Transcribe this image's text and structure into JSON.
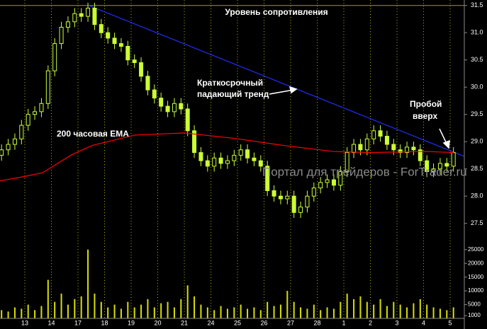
{
  "chart_data": {
    "type": "candlestick",
    "annotations": [
      "Уровень сопротивления",
      "Краткосрочный",
      "падающий тренд",
      "200 часовая EMA",
      "Пробой",
      "вверх"
    ],
    "watermark": "Портал для трейдеров - ForTrader.ru",
    "color": "#ccff33",
    "x": [
      0.125,
      0.375,
      0.625,
      0.875,
      1.125,
      1.375,
      1.625,
      1.875,
      2.125,
      2.375,
      2.625,
      2.875,
      3.125,
      3.375,
      3.625,
      3.875,
      4.125,
      4.375,
      4.625,
      4.875,
      5.125,
      5.375,
      5.625,
      5.875,
      6.125,
      6.375,
      6.625,
      6.875,
      7.125,
      7.375,
      7.625,
      7.875,
      8.125,
      8.375,
      8.625,
      8.875,
      9.125,
      9.375,
      9.625,
      9.875,
      10.125,
      10.375,
      10.625,
      10.875,
      11.125,
      11.375,
      11.625,
      11.875,
      12.125,
      12.375,
      12.625,
      12.875,
      13.125,
      13.375,
      13.625,
      13.875,
      14.125,
      14.375,
      14.625,
      14.875,
      15.125,
      15.375,
      15.625,
      15.875,
      16.125,
      16.375,
      16.625,
      16.875,
      17.125
    ],
    "open": [
      28.75,
      28.85,
      28.95,
      29.05,
      29.3,
      29.5,
      29.55,
      29.7,
      30.3,
      30.8,
      31.1,
      31.2,
      31.35,
      31.3,
      31.45,
      31.15,
      31.0,
      30.9,
      30.8,
      30.75,
      30.5,
      30.45,
      30.2,
      29.95,
      29.8,
      29.65,
      29.55,
      29.7,
      29.6,
      29.2,
      28.8,
      28.65,
      28.55,
      28.7,
      28.6,
      28.65,
      28.75,
      28.85,
      28.7,
      28.65,
      28.55,
      28.1,
      28.0,
      27.95,
      28.0,
      27.7,
      27.8,
      28.0,
      28.15,
      28.25,
      28.3,
      28.2,
      28.45,
      28.8,
      28.95,
      28.85,
      29.05,
      29.2,
      29.1,
      28.95,
      28.85,
      28.8,
      28.9,
      28.85,
      28.65,
      28.45,
      28.5,
      28.6,
      28.55
    ],
    "high": [
      28.95,
      29.05,
      29.15,
      29.4,
      29.6,
      29.65,
      29.8,
      30.4,
      30.9,
      31.2,
      31.3,
      31.45,
      31.45,
      31.55,
      31.55,
      31.25,
      31.1,
      31.0,
      30.9,
      30.85,
      30.6,
      30.55,
      30.3,
      30.05,
      29.9,
      29.75,
      29.8,
      29.8,
      29.7,
      29.3,
      28.9,
      28.75,
      28.8,
      28.8,
      28.75,
      28.85,
      28.95,
      28.95,
      28.8,
      28.75,
      28.65,
      28.2,
      28.1,
      28.1,
      28.1,
      27.9,
      28.1,
      28.25,
      28.35,
      28.4,
      28.4,
      28.55,
      28.9,
      29.05,
      29.05,
      29.15,
      29.3,
      29.3,
      29.2,
      29.05,
      28.95,
      29.0,
      29.0,
      28.95,
      28.75,
      28.6,
      28.7,
      28.7,
      28.9
    ],
    "low": [
      28.65,
      28.75,
      28.85,
      28.95,
      29.2,
      29.4,
      29.45,
      29.6,
      30.2,
      30.7,
      31.0,
      31.1,
      31.2,
      31.2,
      31.05,
      30.9,
      30.8,
      30.7,
      30.65,
      30.4,
      30.35,
      30.1,
      29.85,
      29.7,
      29.55,
      29.45,
      29.45,
      29.5,
      29.1,
      28.7,
      28.55,
      28.45,
      28.45,
      28.5,
      28.5,
      28.55,
      28.65,
      28.6,
      28.55,
      28.45,
      28.0,
      27.9,
      27.85,
      27.85,
      27.6,
      27.6,
      27.7,
      27.9,
      28.05,
      28.15,
      28.1,
      28.1,
      28.35,
      28.7,
      28.75,
      28.75,
      28.95,
      29.0,
      28.85,
      28.75,
      28.7,
      28.7,
      28.75,
      28.55,
      28.35,
      28.35,
      28.4,
      28.45,
      28.45
    ],
    "close": [
      28.85,
      28.95,
      29.05,
      29.3,
      29.5,
      29.55,
      29.7,
      30.3,
      30.8,
      31.1,
      31.2,
      31.35,
      31.3,
      31.45,
      31.15,
      31.0,
      30.9,
      30.8,
      30.75,
      30.5,
      30.45,
      30.2,
      29.95,
      29.8,
      29.65,
      29.55,
      29.7,
      29.6,
      29.2,
      28.8,
      28.65,
      28.55,
      28.7,
      28.6,
      28.65,
      28.75,
      28.85,
      28.7,
      28.65,
      28.55,
      28.1,
      28.0,
      27.95,
      28.0,
      27.7,
      27.8,
      28.0,
      28.15,
      28.25,
      28.3,
      28.2,
      28.45,
      28.8,
      28.95,
      28.85,
      29.05,
      29.2,
      29.1,
      28.95,
      28.85,
      28.8,
      28.9,
      28.85,
      28.65,
      28.45,
      28.5,
      28.6,
      28.55,
      28.8
    ],
    "volume": {
      "axis": "y2",
      "color": "#d8e000",
      "values": [
        3000,
        2500,
        4000,
        3500,
        5000,
        3000,
        4500,
        14000,
        6000,
        9000,
        5000,
        7000,
        8000,
        25000,
        9000,
        6000,
        4000,
        5000,
        3500,
        6000,
        4000,
        5000,
        7000,
        4000,
        5500,
        6000,
        4000,
        7000,
        12000,
        8000,
        5000,
        4000,
        3000,
        4500,
        3500,
        4000,
        5000,
        3500,
        4000,
        3000,
        6000,
        4500,
        5000,
        10000,
        6000,
        4000,
        3500,
        5000,
        3000,
        4000,
        3500,
        6000,
        9000,
        7000,
        8000,
        6000,
        5000,
        7000,
        4500,
        6000,
        5000,
        4000,
        5500,
        7000,
        5000,
        4000,
        3500,
        3000,
        4000
      ]
    },
    "ema": {
      "color": "#ff0000",
      "x": [
        0.07,
        0.87,
        1.67,
        2.73,
        3.53,
        5.13,
        7.0,
        8.87,
        10.73,
        12.6,
        13.93,
        16.07,
        17.13
      ],
      "values": [
        28.28,
        28.35,
        28.43,
        28.75,
        28.93,
        29.12,
        29.16,
        29.06,
        28.93,
        28.82,
        28.8,
        28.82,
        28.8
      ]
    },
    "trendline": {
      "color": "#2030ff",
      "x": [
        3.4,
        17.53
      ],
      "values": [
        31.5,
        28.73
      ]
    },
    "resistance": {
      "color": "#9a9a20",
      "value": 31.5
    },
    "grid": true,
    "xlim": [
      0,
      17.5
    ],
    "xticks": [
      {
        "value": 1,
        "label": "13"
      },
      {
        "value": 2,
        "label": "14"
      },
      {
        "value": 3,
        "label": "17"
      },
      {
        "value": 4,
        "label": "18"
      },
      {
        "value": 5,
        "label": "19"
      },
      {
        "value": 6,
        "label": "20"
      },
      {
        "value": 7,
        "label": "21"
      },
      {
        "value": 8,
        "label": "24"
      },
      {
        "value": 9,
        "label": "25"
      },
      {
        "value": 10,
        "label": "26"
      },
      {
        "value": 11,
        "label": "27"
      },
      {
        "value": 12,
        "label": "28"
      },
      {
        "value": 13,
        "label": "1"
      },
      {
        "value": 14,
        "label": "2"
      },
      {
        "value": 15,
        "label": "3"
      },
      {
        "value": 16,
        "label": "4"
      },
      {
        "value": 17,
        "label": "5"
      }
    ],
    "ylim": [
      27.1,
      31.6
    ],
    "yticks": [
      31.5,
      {
        "value": 31,
        "label": "31.0"
      },
      30.5,
      {
        "value": 30,
        "label": "30.0"
      },
      29.5,
      {
        "value": 29,
        "label": "29.0"
      },
      28.5,
      {
        "value": 28,
        "label": "28.0"
      },
      27.5
    ],
    "y2lim": [
      0,
      27000
    ],
    "y2ticks": [
      25000,
      20000,
      15000,
      10000,
      5000,
      1000
    ]
  }
}
